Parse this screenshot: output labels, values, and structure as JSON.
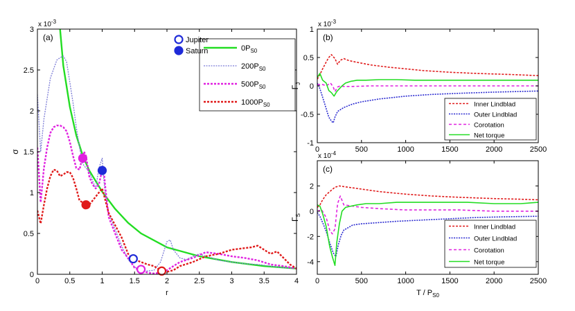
{
  "chart_data": [
    {
      "id": "a",
      "type": "line",
      "panel_label": "(a)",
      "xlabel": "r",
      "ylabel": "σ",
      "exponent": "x 10",
      "exponent_power": "-3",
      "xlim": [
        0,
        4
      ],
      "ylim": [
        0,
        3
      ],
      "xticks": [
        0,
        0.5,
        1,
        1.5,
        2,
        2.5,
        3,
        3.5,
        4
      ],
      "xtick_labels": [
        "0",
        "0.5",
        "1",
        "1.5",
        "2",
        "2.5",
        "3",
        "3.5",
        "4"
      ],
      "yticks": [
        0,
        0.5,
        1,
        1.5,
        2,
        2.5,
        3
      ],
      "ytick_labels": [
        "0",
        "0.5",
        "1",
        "1.5",
        "2",
        "2.5",
        "3"
      ],
      "marker_legend": [
        {
          "label": "Jupiter",
          "style": "open-circle",
          "color": "#1e2ad8"
        },
        {
          "label": "Saturn",
          "style": "filled-circle",
          "color": "#1e2ad8"
        }
      ],
      "series": [
        {
          "name": "0P",
          "sub": "S0",
          "color": "#22dd22",
          "dash": "",
          "width": 2.4,
          "x": [
            0.35,
            0.4,
            0.5,
            0.6,
            0.7,
            0.8,
            1.0,
            1.2,
            1.4,
            1.6,
            2.0,
            2.5,
            3.0,
            3.5,
            4.0
          ],
          "y": [
            3.0,
            2.55,
            2.05,
            1.7,
            1.45,
            1.27,
            1.01,
            0.8,
            0.63,
            0.5,
            0.33,
            0.22,
            0.15,
            0.1,
            0.07
          ]
        },
        {
          "name": "200P",
          "sub": "S0",
          "color": "#7b7bd6",
          "dash": "2,1.5",
          "width": 1.3,
          "x": [
            0,
            0.05,
            0.1,
            0.2,
            0.3,
            0.35,
            0.4,
            0.45,
            0.5,
            0.55,
            0.6,
            0.65,
            0.7,
            0.75,
            0.8,
            0.85,
            0.9,
            0.95,
            1.0,
            1.02,
            1.05,
            1.1,
            1.2,
            1.3,
            1.4,
            1.5,
            1.6,
            1.7,
            1.8,
            1.9,
            2.0,
            2.05,
            2.1,
            2.2,
            2.3,
            2.4,
            2.5,
            2.6,
            2.7,
            2.8,
            3.0,
            3.2,
            3.4,
            3.6,
            3.8,
            4.0
          ],
          "y": [
            2.2,
            1.5,
            1.9,
            2.4,
            2.62,
            2.65,
            2.67,
            2.6,
            2.35,
            2.1,
            1.8,
            1.55,
            1.35,
            1.3,
            1.25,
            1.15,
            1.05,
            1.3,
            1.42,
            1.2,
            0.95,
            0.75,
            0.55,
            0.35,
            0.18,
            0.09,
            0.05,
            0.04,
            0.05,
            0.15,
            0.4,
            0.42,
            0.3,
            0.2,
            0.18,
            0.22,
            0.25,
            0.22,
            0.2,
            0.17,
            0.15,
            0.13,
            0.12,
            0.1,
            0.08,
            0.07
          ]
        },
        {
          "name": "500P",
          "sub": "S0",
          "color": "#e020e0",
          "dash": "3,2",
          "width": 2.4,
          "x": [
            0,
            0.05,
            0.1,
            0.15,
            0.2,
            0.25,
            0.3,
            0.35,
            0.4,
            0.45,
            0.5,
            0.55,
            0.6,
            0.65,
            0.7,
            0.72,
            0.75,
            0.8,
            0.85,
            0.9,
            0.95,
            1.0,
            1.02,
            1.05,
            1.1,
            1.2,
            1.3,
            1.4,
            1.5,
            1.55,
            1.6,
            1.7,
            1.8,
            1.9,
            2.0,
            2.1,
            2.2,
            2.4,
            2.6,
            2.8,
            3.0,
            3.2,
            3.4,
            3.6,
            3.8,
            4.0
          ],
          "y": [
            1.55,
            0.88,
            1.3,
            1.55,
            1.73,
            1.8,
            1.82,
            1.82,
            1.8,
            1.75,
            1.62,
            1.45,
            1.3,
            1.28,
            1.45,
            1.5,
            1.45,
            1.2,
            1.1,
            1.05,
            1.1,
            1.28,
            1.3,
            1.05,
            0.7,
            0.5,
            0.3,
            0.2,
            0.08,
            0.06,
            0.05,
            0.02,
            0.01,
            0.02,
            0.05,
            0.1,
            0.15,
            0.2,
            0.27,
            0.25,
            0.22,
            0.2,
            0.17,
            0.12,
            0.1,
            0.07
          ]
        },
        {
          "name": "1000P",
          "sub": "S0",
          "color": "#e01a1a",
          "dash": "3,2",
          "width": 2.4,
          "x": [
            0,
            0.05,
            0.1,
            0.15,
            0.2,
            0.25,
            0.3,
            0.35,
            0.4,
            0.45,
            0.5,
            0.55,
            0.6,
            0.65,
            0.7,
            0.75,
            0.8,
            0.85,
            0.9,
            0.95,
            1.0,
            1.05,
            1.1,
            1.2,
            1.3,
            1.4,
            1.45,
            1.5,
            1.6,
            1.7,
            1.8,
            1.9,
            2.0,
            2.1,
            2.2,
            2.4,
            2.6,
            2.8,
            3.0,
            3.2,
            3.3,
            3.4,
            3.5,
            3.6,
            3.7,
            3.8,
            3.9,
            4.0
          ],
          "y": [
            0.78,
            0.62,
            0.85,
            1.05,
            1.2,
            1.28,
            1.27,
            1.2,
            1.22,
            1.25,
            1.25,
            1.18,
            1.05,
            0.9,
            0.88,
            0.85,
            0.85,
            0.9,
            0.95,
            1.0,
            1.05,
            0.9,
            0.75,
            0.6,
            0.45,
            0.25,
            0.2,
            0.18,
            0.15,
            0.12,
            0.1,
            0.05,
            0.03,
            0.05,
            0.1,
            0.15,
            0.22,
            0.25,
            0.3,
            0.32,
            0.33,
            0.35,
            0.3,
            0.25,
            0.28,
            0.2,
            0.12,
            0.07
          ]
        }
      ],
      "markers": [
        {
          "planet": "Jupiter",
          "style": "open",
          "color": "#1e2ad8",
          "x": 1.48,
          "y": 0.19
        },
        {
          "planet": "Saturn",
          "style": "filled",
          "color": "#1e2ad8",
          "x": 1.0,
          "y": 1.27
        },
        {
          "planet": "Jupiter",
          "style": "open",
          "color": "#e020e0",
          "x": 1.6,
          "y": 0.06
        },
        {
          "planet": "Saturn",
          "style": "filled",
          "color": "#e020e0",
          "x": 0.7,
          "y": 1.42
        },
        {
          "planet": "Jupiter",
          "style": "open",
          "color": "#e01a1a",
          "x": 1.92,
          "y": 0.04
        },
        {
          "planet": "Saturn",
          "style": "filled",
          "color": "#e01a1a",
          "x": 0.75,
          "y": 0.85
        }
      ]
    },
    {
      "id": "b",
      "type": "line",
      "panel_label": "(b)",
      "ylabel": "Γ",
      "ylabel_sub": "J",
      "exponent": "x 10",
      "exponent_power": "-3",
      "xlim": [
        0,
        2500
      ],
      "ylim": [
        -1,
        1
      ],
      "xticks": [
        0,
        500,
        1000,
        1500,
        2000,
        2500
      ],
      "xtick_labels": [
        "0",
        "500",
        "1000",
        "1500",
        "2000",
        "2500"
      ],
      "yticks": [
        -1,
        -0.5,
        0,
        0.5,
        1
      ],
      "ytick_labels": [
        "-1",
        "-0.5",
        "0",
        "0.5",
        "1"
      ],
      "series": [
        {
          "name": "Inner Lindblad",
          "color": "#e01a1a",
          "dash": "3,2",
          "x": [
            0,
            30,
            60,
            100,
            130,
            160,
            200,
            230,
            260,
            300,
            350,
            400,
            500,
            600,
            800,
            1000,
            1200,
            1500,
            1800,
            2000,
            2200,
            2500
          ],
          "y": [
            0.12,
            0.2,
            0.3,
            0.42,
            0.5,
            0.55,
            0.48,
            0.38,
            0.45,
            0.48,
            0.45,
            0.43,
            0.4,
            0.37,
            0.33,
            0.3,
            0.27,
            0.24,
            0.22,
            0.21,
            0.2,
            0.18
          ]
        },
        {
          "name": "Outer Lindblad",
          "color": "#2a2ad0",
          "dash": "2,1.5",
          "x": [
            0,
            30,
            60,
            100,
            130,
            160,
            180,
            200,
            230,
            260,
            300,
            400,
            500,
            700,
            1000,
            1300,
            1600,
            2000,
            2500
          ],
          "y": [
            0.05,
            -0.05,
            -0.2,
            -0.4,
            -0.55,
            -0.62,
            -0.65,
            -0.55,
            -0.45,
            -0.42,
            -0.38,
            -0.32,
            -0.28,
            -0.23,
            -0.18,
            -0.15,
            -0.13,
            -0.11,
            -0.09
          ]
        },
        {
          "name": "Corotation",
          "color": "#e020e0",
          "dash": "4,3",
          "x": [
            0,
            50,
            100,
            150,
            180,
            200,
            230,
            260,
            300,
            400,
            600,
            1000,
            1500,
            2000,
            2500
          ],
          "y": [
            0.02,
            0.03,
            0.0,
            0.05,
            -0.02,
            -0.1,
            -0.02,
            0.0,
            -0.01,
            -0.01,
            0.0,
            0.0,
            0.0,
            0.0,
            0.0
          ]
        },
        {
          "name": "Net torque",
          "color": "#22dd22",
          "dash": "",
          "x": [
            0,
            30,
            60,
            100,
            130,
            160,
            190,
            220,
            250,
            280,
            320,
            380,
            450,
            550,
            700,
            900,
            1100,
            1400,
            1700,
            2000,
            2300,
            2500
          ],
          "y": [
            0.15,
            0.22,
            0.1,
            0.05,
            -0.08,
            -0.12,
            -0.18,
            -0.1,
            -0.05,
            0.0,
            0.05,
            0.08,
            0.1,
            0.1,
            0.11,
            0.11,
            0.1,
            0.1,
            0.1,
            0.1,
            0.1,
            0.1
          ]
        }
      ]
    },
    {
      "id": "c",
      "type": "line",
      "panel_label": "(c)",
      "xlabel": "T / P",
      "xlabel_sub": "S0",
      "ylabel": "Γ",
      "ylabel_sub": "S",
      "exponent": "x 10",
      "exponent_power": "-4",
      "xlim": [
        0,
        2500
      ],
      "ylim": [
        -5,
        4
      ],
      "xticks": [
        0,
        500,
        1000,
        1500,
        2000,
        2500
      ],
      "xtick_labels": [
        "0",
        "500",
        "1000",
        "1500",
        "2000",
        "2500"
      ],
      "yticks": [
        -4,
        -2,
        0,
        2
      ],
      "ytick_labels": [
        "-4",
        "-2",
        "0",
        "2"
      ],
      "series": [
        {
          "name": "Inner Lindblad",
          "color": "#e01a1a",
          "dash": "3,2",
          "x": [
            0,
            30,
            60,
            100,
            150,
            200,
            250,
            300,
            400,
            500,
            700,
            1000,
            1300,
            1600,
            2000,
            2300,
            2500
          ],
          "y": [
            0.3,
            0.5,
            0.9,
            1.3,
            1.6,
            1.9,
            2.0,
            1.95,
            1.85,
            1.75,
            1.55,
            1.35,
            1.2,
            1.1,
            1.0,
            0.95,
            0.9
          ]
        },
        {
          "name": "Outer Lindblad",
          "color": "#2a2ad0",
          "dash": "2,1.5",
          "x": [
            0,
            30,
            60,
            100,
            140,
            180,
            210,
            240,
            270,
            300,
            350,
            400,
            500,
            700,
            900,
            1200,
            1500,
            1800,
            2100,
            2500
          ],
          "y": [
            -0.1,
            -0.4,
            -0.9,
            -1.6,
            -2.5,
            -3.3,
            -3.6,
            -2.6,
            -1.9,
            -1.5,
            -1.3,
            -1.1,
            -1.0,
            -0.9,
            -0.8,
            -0.7,
            -0.6,
            -0.5,
            -0.45,
            -0.4
          ]
        },
        {
          "name": "Corotation",
          "color": "#e020e0",
          "dash": "4,3",
          "x": [
            0,
            50,
            100,
            140,
            170,
            200,
            230,
            260,
            300,
            400,
            500,
            700,
            1000,
            1300,
            1600,
            2000,
            2500
          ],
          "y": [
            0.0,
            0.1,
            -0.5,
            -1.5,
            -1.8,
            -1.4,
            0.6,
            1.2,
            0.5,
            0.4,
            0.3,
            0.2,
            0.1,
            0.1,
            0.1,
            0.0,
            0.0
          ]
        },
        {
          "name": "Net torque",
          "color": "#22dd22",
          "dash": "",
          "x": [
            0,
            30,
            60,
            100,
            140,
            170,
            200,
            220,
            250,
            280,
            320,
            380,
            450,
            550,
            700,
            900,
            1100,
            1400,
            1700,
            2000,
            2300,
            2500
          ],
          "y": [
            0.5,
            0.4,
            -0.2,
            -1.2,
            -2.8,
            -3.6,
            -4.3,
            -2.5,
            -1.0,
            0.0,
            0.3,
            0.4,
            0.5,
            0.6,
            0.6,
            0.7,
            0.7,
            0.7,
            0.7,
            0.6,
            0.6,
            0.7
          ]
        }
      ]
    }
  ]
}
